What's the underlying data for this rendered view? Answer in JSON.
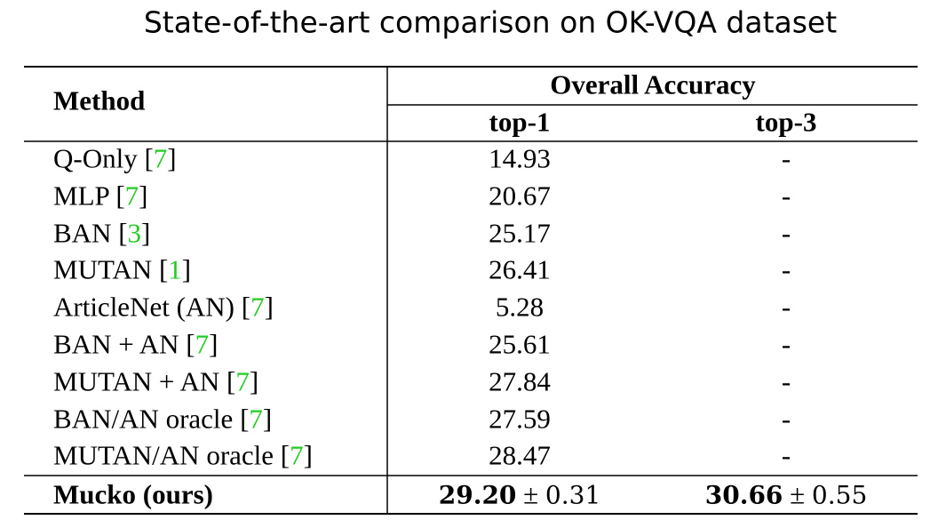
{
  "title": "State-of-the-art comparison on OK-VQA dataset",
  "table": {
    "header": {
      "method": "Method",
      "group": "Overall Accuracy",
      "top1": "top-1",
      "top3": "top-3"
    },
    "rows": [
      {
        "method": "Q-Only",
        "cite": [
          "[",
          "7",
          "]"
        ],
        "top1": "14.93",
        "top3": "-"
      },
      {
        "method": "MLP",
        "cite": [
          "[",
          "7",
          "]"
        ],
        "top1": "20.67",
        "top3": "-"
      },
      {
        "method": "BAN",
        "cite": [
          "[",
          "3",
          "]"
        ],
        "top1": "25.17",
        "top3": "-"
      },
      {
        "method": "MUTAN",
        "cite": [
          "[",
          "1",
          "]"
        ],
        "top1": "26.41",
        "top3": "-"
      },
      {
        "method": "ArticleNet (AN)",
        "cite": [
          "[",
          "7",
          "]"
        ],
        "top1": "5.28",
        "top3": "-"
      },
      {
        "method": "BAN + AN",
        "cite": [
          "[",
          "7",
          "]"
        ],
        "top1": "25.61",
        "top3": "-"
      },
      {
        "method": "MUTAN + AN",
        "cite": [
          "[",
          "7",
          "]"
        ],
        "top1": "27.84",
        "top3": "-"
      },
      {
        "method": "BAN/AN oracle",
        "cite": [
          "[",
          "7",
          "]"
        ],
        "top1": "27.59",
        "top3": "-"
      },
      {
        "method": "MUTAN/AN oracle",
        "cite": [
          "[",
          "7",
          "]"
        ],
        "top1": "28.47",
        "top3": "-"
      }
    ],
    "ours": {
      "method": "Mucko (ours)",
      "top1": {
        "value": "29.20",
        "pm": "±",
        "err": "0.31"
      },
      "top3": {
        "value": "30.66",
        "pm": "±",
        "err": "0.55"
      }
    }
  }
}
